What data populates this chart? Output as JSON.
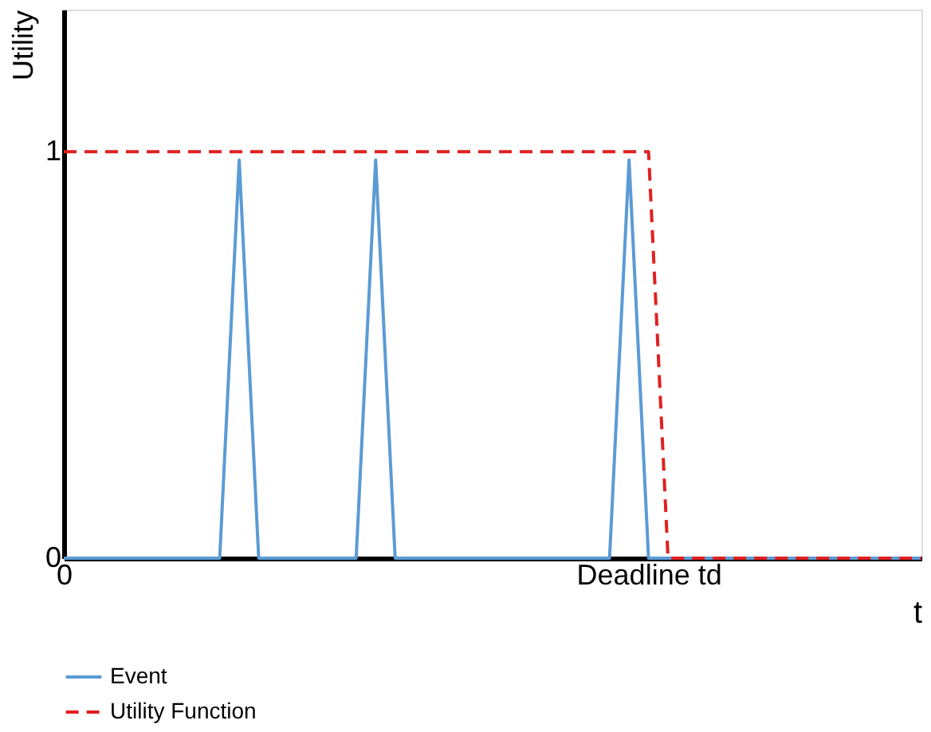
{
  "chart_data": {
    "type": "line",
    "xlabel": "t",
    "ylabel": "Utility",
    "categories": [
      "0",
      null,
      null,
      null,
      null,
      null,
      null,
      null,
      null,
      null,
      null,
      null,
      null,
      null,
      null,
      null,
      null,
      null,
      null,
      null,
      null,
      null,
      null,
      null,
      null,
      null,
      null,
      null,
      null,
      null,
      "Deadline td",
      null,
      null,
      null,
      null,
      null,
      null,
      null,
      null,
      null,
      null,
      null,
      null,
      null,
      null
    ],
    "ylim": [
      0,
      1.35
    ],
    "yticks": [
      0,
      1
    ],
    "series": [
      {
        "name": "Event",
        "color": "#5b9bd5",
        "line_style": "solid",
        "values": [
          0,
          0,
          0,
          0,
          0,
          0,
          0,
          0,
          0,
          0.98,
          0,
          0,
          0,
          0,
          0,
          0,
          0.98,
          0,
          0,
          0,
          0,
          0,
          0,
          0,
          0,
          0,
          0,
          0,
          0,
          0.98,
          0,
          0,
          0,
          0,
          0,
          0,
          0,
          0,
          0,
          0,
          0,
          0,
          0,
          0,
          0
        ]
      },
      {
        "name": "Utility Function",
        "color": "#e02020",
        "line_style": "dashed",
        "values": [
          1,
          1,
          1,
          1,
          1,
          1,
          1,
          1,
          1,
          1,
          1,
          1,
          1,
          1,
          1,
          1,
          1,
          1,
          1,
          1,
          1,
          1,
          1,
          1,
          1,
          1,
          1,
          1,
          1,
          1,
          1,
          0,
          0,
          0,
          0,
          0,
          0,
          0,
          0,
          0,
          0,
          0,
          0,
          0,
          0
        ]
      }
    ],
    "grid": false,
    "legend": "bottom"
  }
}
